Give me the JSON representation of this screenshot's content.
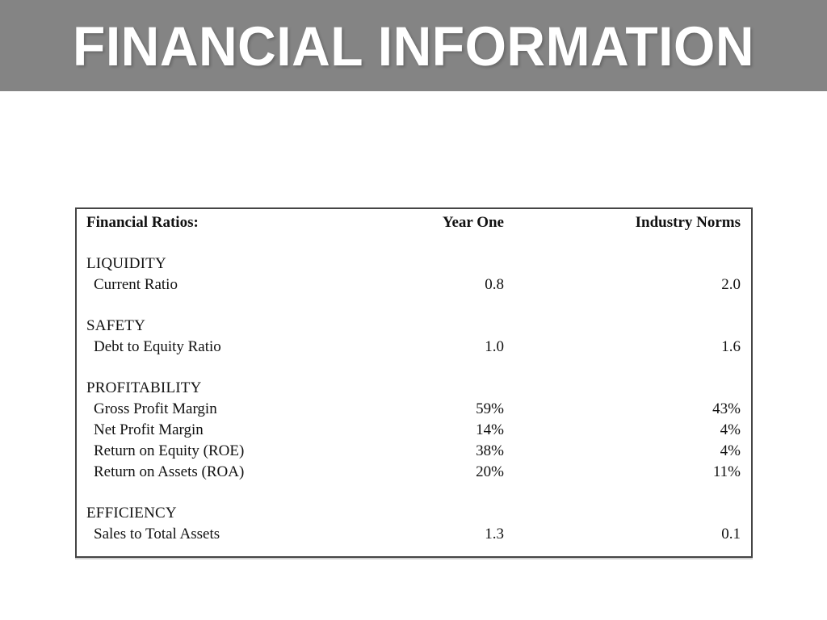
{
  "slide": {
    "title": "FINANCIAL INFORMATION"
  },
  "table": {
    "columns": [
      "Financial Ratios:",
      "Year One",
      "Industry Norms"
    ],
    "sections": [
      {
        "name": "LIQUIDITY",
        "rows": [
          {
            "label": "Current Ratio",
            "year_one": "0.8",
            "industry_norms": "2.0"
          }
        ]
      },
      {
        "name": "SAFETY",
        "rows": [
          {
            "label": "Debt to Equity Ratio",
            "year_one": "1.0",
            "industry_norms": "1.6"
          }
        ]
      },
      {
        "name": "PROFITABILITY",
        "rows": [
          {
            "label": "Gross Profit Margin",
            "year_one": "59%",
            "industry_norms": "43%"
          },
          {
            "label": "Net Profit Margin",
            "year_one": "14%",
            "industry_norms": "4%"
          },
          {
            "label": "Return on Equity (ROE)",
            "year_one": "38%",
            "industry_norms": "4%"
          },
          {
            "label": "Return on Assets (ROA)",
            "year_one": "20%",
            "industry_norms": "11%"
          }
        ]
      },
      {
        "name": "EFFICIENCY",
        "rows": [
          {
            "label": "Sales to Total Assets",
            "year_one": "1.3",
            "industry_norms": "0.1"
          }
        ]
      }
    ]
  },
  "colors": {
    "header_bg": "#848484",
    "title_text": "#ffffff",
    "table_border": "#454545",
    "text": "#111111",
    "slide_bg": "#ffffff"
  }
}
